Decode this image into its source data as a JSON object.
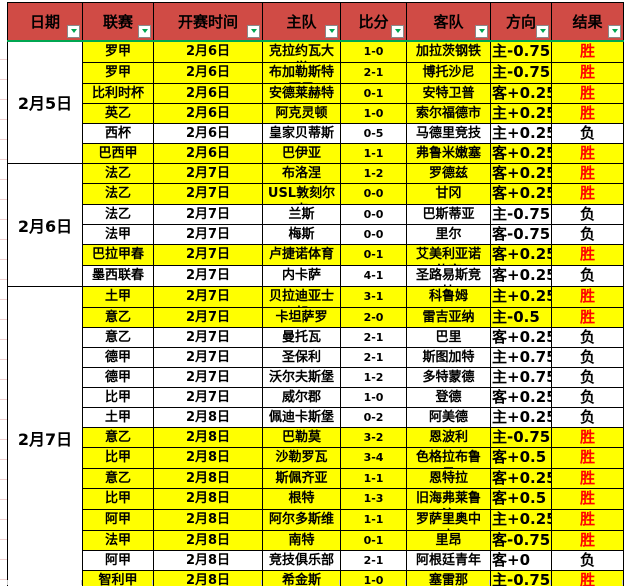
{
  "colors": {
    "header_bg": "#D04B45",
    "header_underline": "#00A651",
    "highlight_row": "#FFFF00",
    "win_text": "#FF0000",
    "normal_text": "#000000",
    "filter_arrow": "#00A651",
    "cell_border": "#000000"
  },
  "table": {
    "win_label": "胜",
    "lose_label": "负",
    "headers": [
      {
        "label": "日期"
      },
      {
        "label": "联赛"
      },
      {
        "label": "开赛时间"
      },
      {
        "label": "主队"
      },
      {
        "label": "比分"
      },
      {
        "label": "客队"
      },
      {
        "label": "方向"
      },
      {
        "label": "结果"
      }
    ],
    "sections": [
      {
        "date": "2月5日",
        "rows": [
          {
            "league": "罗甲",
            "time": "2月6日",
            "home": "克拉约瓦大学",
            "score": "1-0",
            "away": "加拉茨钢铁",
            "direction": "主-0.75",
            "result": "胜",
            "highlight": true
          },
          {
            "league": "罗甲",
            "time": "2月6日",
            "home": "布加勒斯特国民",
            "score": "2-1",
            "away": "博托沙尼",
            "direction": "主-0.75",
            "result": "胜",
            "highlight": true
          },
          {
            "league": "比利时杯",
            "time": "2月6日",
            "home": "安德莱赫特",
            "score": "0-1",
            "away": "安特卫普",
            "direction": "客+0.25",
            "result": "胜",
            "highlight": true
          },
          {
            "league": "英乙",
            "time": "2月6日",
            "home": "阿克灵顿",
            "score": "1-0",
            "away": "索尔福德市",
            "direction": "主+0.25",
            "result": "胜",
            "highlight": true
          },
          {
            "league": "西杯",
            "time": "2月6日",
            "home": "皇家贝蒂斯",
            "score": "0-5",
            "away": "马德里竞技",
            "direction": "主+0.25",
            "result": "负",
            "highlight": false
          },
          {
            "league": "巴西甲",
            "time": "2月6日",
            "home": "巴伊亚",
            "score": "1-1",
            "away": "弗鲁米嫩塞",
            "direction": "客+0.25",
            "result": "胜",
            "highlight": true
          }
        ]
      },
      {
        "date": "2月6日",
        "rows": [
          {
            "league": "法乙",
            "time": "2月7日",
            "home": "布洛涅",
            "score": "1-2",
            "away": "罗德兹",
            "direction": "客+0.25",
            "result": "胜",
            "highlight": true
          },
          {
            "league": "法乙",
            "time": "2月7日",
            "home": "USL敦刻尔克",
            "score": "0-0",
            "away": "甘冈",
            "direction": "客+0.25",
            "result": "胜",
            "highlight": true
          },
          {
            "league": "法乙",
            "time": "2月7日",
            "home": "兰斯",
            "score": "0-0",
            "away": "巴斯蒂亚",
            "direction": "主-0.75",
            "result": "负",
            "highlight": false
          },
          {
            "league": "法甲",
            "time": "2月7日",
            "home": "梅斯",
            "score": "0-0",
            "away": "里尔",
            "direction": "客-0.75",
            "result": "负",
            "highlight": false
          },
          {
            "league": "巴拉甲春",
            "time": "2月7日",
            "home": "卢捷诺体育",
            "score": "0-1",
            "away": "艾美利亚诺体育",
            "direction": "客+0.25",
            "result": "胜",
            "highlight": true
          },
          {
            "league": "墨西联春",
            "time": "2月7日",
            "home": "内卡萨",
            "score": "4-1",
            "away": "圣路易斯竞技",
            "direction": "客+0.25",
            "result": "负",
            "highlight": false
          }
        ]
      },
      {
        "date": "2月7日",
        "rows": [
          {
            "league": "土甲",
            "time": "2月7日",
            "home": "贝拉迪亚士邦",
            "score": "3-1",
            "away": "科鲁姆",
            "direction": "主+0.25",
            "result": "胜",
            "highlight": true
          },
          {
            "league": "意乙",
            "time": "2月7日",
            "home": "卡坦萨罗",
            "score": "2-0",
            "away": "雷吉亚纳",
            "direction": "主-0.5",
            "result": "胜",
            "highlight": true
          },
          {
            "league": "意乙",
            "time": "2月7日",
            "home": "曼托瓦",
            "score": "2-1",
            "away": "巴里",
            "direction": "客+0.25",
            "result": "负",
            "highlight": false
          },
          {
            "league": "德甲",
            "time": "2月7日",
            "home": "圣保利",
            "score": "2-1",
            "away": "斯图加特",
            "direction": "主+0.75",
            "result": "负",
            "highlight": false
          },
          {
            "league": "德甲",
            "time": "2月7日",
            "home": "沃尔夫斯堡",
            "score": "1-2",
            "away": "多特蒙德",
            "direction": "主+0.75",
            "result": "负",
            "highlight": false
          },
          {
            "league": "比甲",
            "time": "2月7日",
            "home": "威尔郡",
            "score": "1-0",
            "away": "登德",
            "direction": "客+0.25",
            "result": "负",
            "highlight": false
          },
          {
            "league": "土甲",
            "time": "2月8日",
            "home": "佩迪卡斯堡",
            "score": "0-2",
            "away": "阿美德",
            "direction": "主+0.25",
            "result": "负",
            "highlight": false
          },
          {
            "league": "意乙",
            "time": "2月8日",
            "home": "巴勒莫",
            "score": "3-2",
            "away": "恩波利",
            "direction": "主-0.75",
            "result": "胜",
            "highlight": true
          },
          {
            "league": "比甲",
            "time": "2月8日",
            "home": "沙勒罗瓦",
            "score": "3-4",
            "away": "色格拉布鲁日",
            "direction": "客+0.5",
            "result": "胜",
            "highlight": true
          },
          {
            "league": "意乙",
            "time": "2月8日",
            "home": "斯佩齐亚",
            "score": "1-1",
            "away": "恩特拉",
            "direction": "客+0.25",
            "result": "胜",
            "highlight": true
          },
          {
            "league": "比甲",
            "time": "2月8日",
            "home": "根特",
            "score": "1-3",
            "away": "旧海弗莱鲁汶",
            "direction": "客+0.5",
            "result": "胜",
            "highlight": true
          },
          {
            "league": "阿甲",
            "time": "2月8日",
            "home": "阿尔多斯维",
            "score": "1-1",
            "away": "罗萨里奥中央",
            "direction": "主+0.25",
            "result": "胜",
            "highlight": true
          },
          {
            "league": "法甲",
            "time": "2月8日",
            "home": "南特",
            "score": "0-1",
            "away": "里昂",
            "direction": "客-0.75",
            "result": "胜",
            "highlight": true
          },
          {
            "league": "阿甲",
            "time": "2月8日",
            "home": "竞技俱乐部",
            "score": "2-1",
            "away": "阿根廷青年",
            "direction": "客+0",
            "result": "负",
            "highlight": false
          },
          {
            "league": "智利甲",
            "time": "2月8日",
            "home": "希金斯",
            "score": "1-0",
            "away": "塞雷那",
            "direction": "主-0.75",
            "result": "胜",
            "highlight": true
          }
        ]
      }
    ]
  }
}
